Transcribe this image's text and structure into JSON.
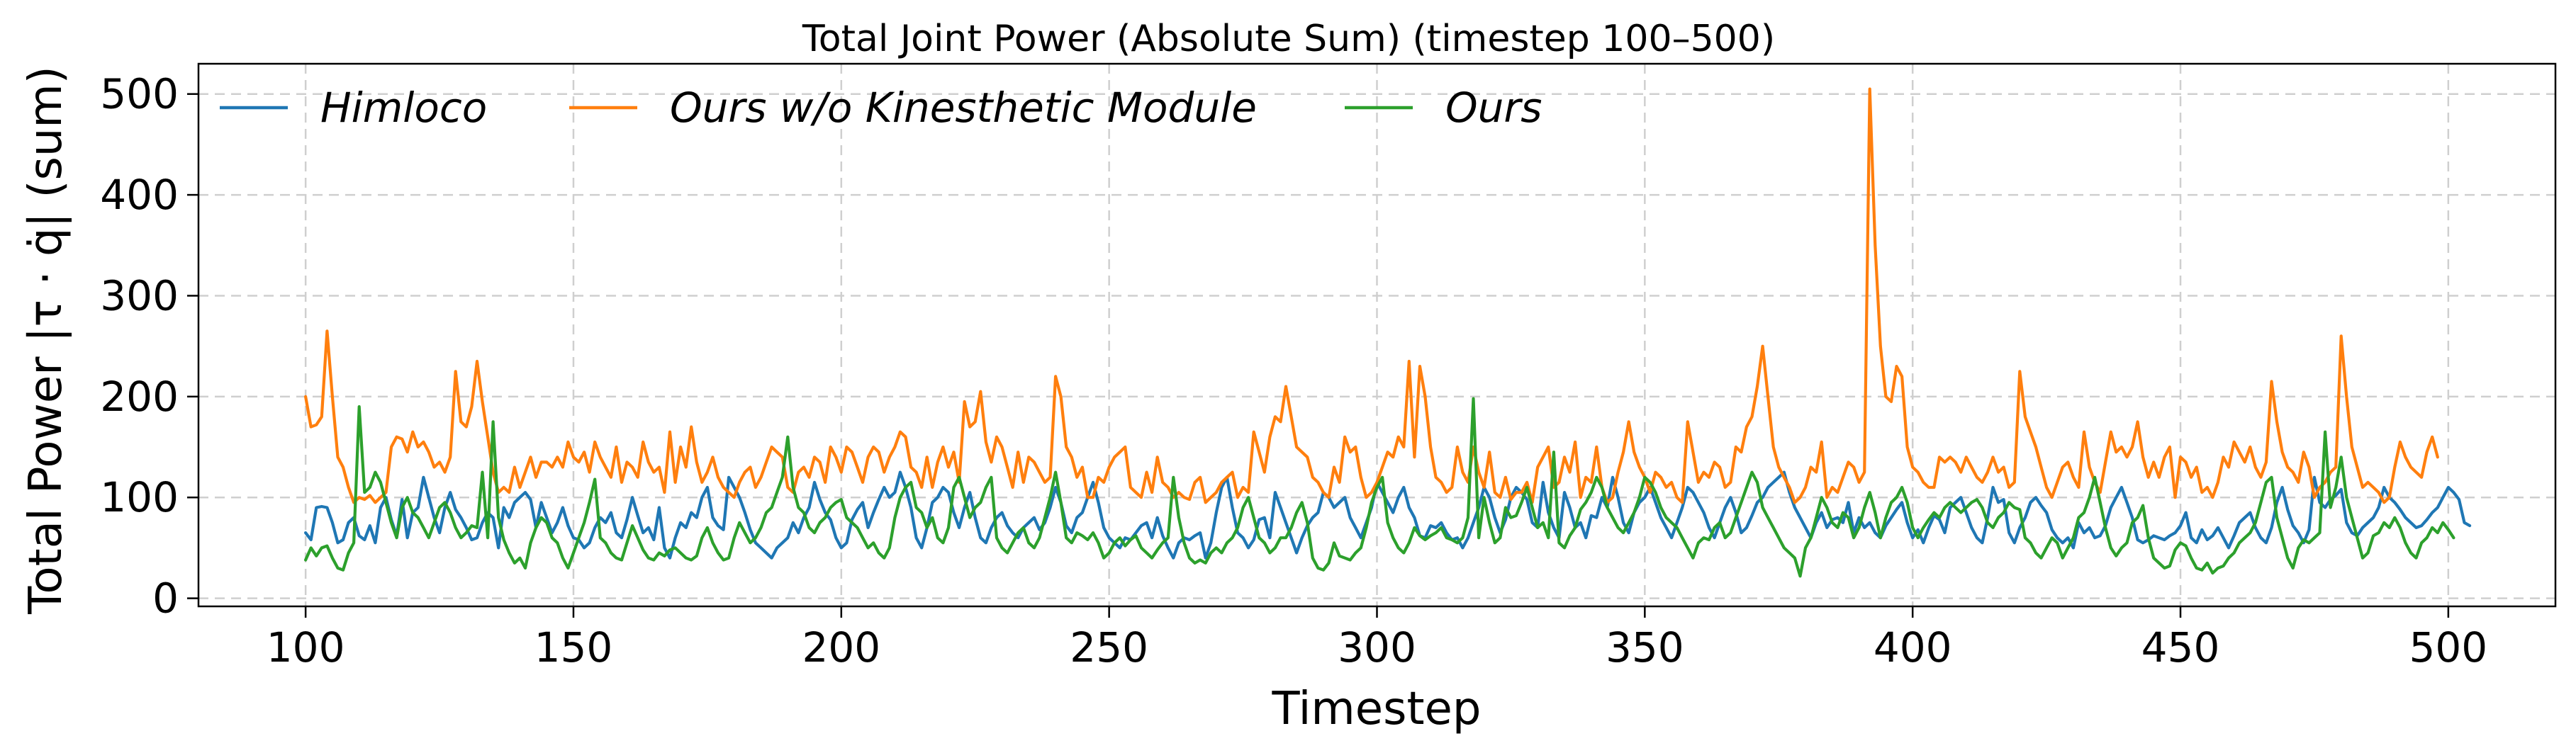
{
  "chart_data": {
    "type": "line",
    "title": "Total Joint Power (Absolute Sum)  (timestep 100–500)",
    "xlabel": "Timestep",
    "ylabel": "Total Power |τ · q̇| (sum)",
    "xlim": [
      80,
      520
    ],
    "ylim": [
      -8,
      530
    ],
    "xticks": [
      100,
      150,
      200,
      250,
      300,
      350,
      400,
      450,
      500
    ],
    "yticks": [
      0,
      100,
      200,
      300,
      400,
      500
    ],
    "grid": true,
    "legend_position": "top-left",
    "x": {
      "start": 100,
      "end": 500,
      "step": 1
    },
    "series": [
      {
        "name": "Himloco",
        "color": "#1f77b4",
        "values": [
          65,
          58,
          90,
          91,
          90,
          75,
          55,
          58,
          75,
          80,
          62,
          58,
          72,
          55,
          90,
          100,
          78,
          62,
          98,
          60,
          85,
          90,
          120,
          100,
          80,
          65,
          90,
          105,
          88,
          80,
          70,
          58,
          60,
          75,
          85,
          80,
          50,
          90,
          80,
          95,
          100,
          105,
          98,
          70,
          95,
          80,
          65,
          75,
          90,
          72,
          60,
          58,
          50,
          55,
          70,
          80,
          75,
          85,
          65,
          60,
          78,
          100,
          82,
          65,
          70,
          58,
          90,
          50,
          40,
          60,
          75,
          70,
          85,
          80,
          100,
          110,
          80,
          72,
          68,
          120,
          110,
          100,
          85,
          68,
          55,
          50,
          45,
          40,
          50,
          55,
          60,
          75,
          65,
          80,
          90,
          115,
          98,
          85,
          78,
          60,
          50,
          55,
          78,
          88,
          95,
          70,
          85,
          98,
          110,
          100,
          105,
          125,
          110,
          90,
          60,
          50,
          70,
          95,
          100,
          110,
          105,
          85,
          70,
          90,
          105,
          80,
          60,
          55,
          70,
          80,
          85,
          72,
          65,
          60,
          70,
          75,
          80,
          68,
          75,
          90,
          110,
          95,
          72,
          65,
          80,
          85,
          100,
          115,
          95,
          70,
          60,
          55,
          50,
          60,
          58,
          65,
          72,
          75,
          60,
          80,
          62,
          50,
          40,
          55,
          60,
          58,
          62,
          65,
          40,
          55,
          85,
          110,
          120,
          90,
          65,
          60,
          50,
          58,
          78,
          80,
          60,
          105,
          90,
          75,
          60,
          45,
          60,
          72,
          80,
          85,
          105,
          100,
          90,
          95,
          100,
          80,
          70,
          60,
          75,
          90,
          115,
          105,
          95,
          85,
          100,
          110,
          90,
          80,
          62,
          60,
          72,
          70,
          75,
          65,
          58,
          60,
          50,
          60,
          75,
          90,
          110,
          100,
          80,
          65,
          78,
          100,
          110,
          105,
          98,
          75,
          70,
          115,
          85,
          70,
          60,
          105,
          90,
          70,
          75,
          60,
          82,
          80,
          100,
          90,
          120,
          100,
          75,
          65,
          85,
          95,
          100,
          110,
          95,
          80,
          70,
          60,
          75,
          90,
          110,
          105,
          95,
          85,
          70,
          60,
          75,
          90,
          100,
          85,
          65,
          70,
          82,
          95,
          100,
          110,
          115,
          120,
          125,
          105,
          90,
          80,
          70,
          60,
          75,
          85,
          70,
          78,
          80,
          75,
          95,
          65,
          80,
          70,
          75,
          65,
          60,
          72,
          80,
          88,
          95,
          75,
          60,
          68,
          55,
          70,
          82,
          78,
          65,
          90,
          95,
          100,
          85,
          70,
          60,
          55,
          80,
          110,
          95,
          98,
          65,
          55,
          70,
          80,
          95,
          100,
          92,
          85,
          68,
          60,
          55,
          60,
          50,
          75,
          65,
          70,
          60,
          62,
          72,
          90,
          100,
          110,
          95,
          80,
          58,
          55,
          58,
          62,
          60,
          58,
          62,
          65,
          72,
          85,
          60,
          55,
          68,
          58,
          62,
          70,
          60,
          50,
          62,
          75,
          80,
          85,
          70,
          60,
          55,
          70,
          95,
          110,
          88,
          72,
          65,
          55,
          68,
          120,
          95,
          90,
          98,
          102,
          108,
          75,
          65,
          62,
          70,
          75,
          80,
          90,
          110,
          100,
          95,
          88,
          80,
          75,
          70,
          72,
          78,
          85,
          90,
          100,
          110,
          105,
          98,
          75,
          72
        ]
      },
      {
        "name": "Ours w/o Kinesthetic Module",
        "color": "#ff7f0e",
        "values": [
          200,
          170,
          172,
          180,
          265,
          200,
          140,
          130,
          110,
          95,
          100,
          98,
          102,
          95,
          100,
          105,
          150,
          160,
          158,
          145,
          165,
          150,
          155,
          145,
          130,
          135,
          125,
          140,
          225,
          175,
          170,
          190,
          235,
          195,
          160,
          125,
          105,
          110,
          105,
          130,
          110,
          125,
          140,
          120,
          135,
          135,
          130,
          140,
          130,
          155,
          140,
          135,
          145,
          125,
          155,
          140,
          130,
          120,
          150,
          115,
          135,
          130,
          120,
          155,
          135,
          125,
          130,
          105,
          165,
          115,
          150,
          130,
          170,
          135,
          115,
          125,
          140,
          120,
          110,
          105,
          100,
          115,
          125,
          130,
          110,
          120,
          135,
          150,
          145,
          140,
          110,
          105,
          125,
          130,
          120,
          140,
          135,
          115,
          150,
          140,
          125,
          150,
          145,
          130,
          115,
          140,
          150,
          145,
          125,
          140,
          150,
          165,
          160,
          130,
          125,
          110,
          140,
          110,
          135,
          150,
          130,
          145,
          115,
          195,
          170,
          175,
          205,
          155,
          135,
          160,
          150,
          130,
          110,
          145,
          115,
          140,
          135,
          125,
          115,
          120,
          220,
          200,
          150,
          140,
          120,
          130,
          100,
          100,
          120,
          115,
          130,
          140,
          145,
          150,
          110,
          105,
          100,
          125,
          105,
          140,
          115,
          110,
          100,
          105,
          100,
          98,
          115,
          120,
          95,
          100,
          105,
          115,
          120,
          125,
          100,
          110,
          105,
          165,
          145,
          125,
          160,
          180,
          175,
          210,
          180,
          150,
          145,
          140,
          120,
          115,
          105,
          100,
          130,
          115,
          160,
          145,
          150,
          120,
          100,
          105,
          115,
          130,
          145,
          140,
          160,
          150,
          235,
          140,
          230,
          200,
          150,
          120,
          115,
          105,
          110,
          150,
          125,
          115,
          150,
          125,
          110,
          145,
          105,
          100,
          120,
          98,
          105,
          105,
          115,
          95,
          130,
          140,
          150,
          110,
          115,
          140,
          125,
          155,
          100,
          120,
          115,
          150,
          110,
          95,
          100,
          125,
          145,
          175,
          145,
          130,
          120,
          105,
          125,
          120,
          110,
          115,
          100,
          95,
          175,
          145,
          115,
          125,
          120,
          135,
          130,
          110,
          115,
          150,
          145,
          170,
          180,
          210,
          250,
          200,
          150,
          130,
          120,
          110,
          95,
          100,
          110,
          130,
          125,
          155,
          100,
          110,
          105,
          120,
          135,
          130,
          115,
          125,
          505,
          350,
          250,
          200,
          195,
          230,
          220,
          150,
          130,
          125,
          115,
          110,
          110,
          140,
          135,
          140,
          135,
          125,
          140,
          130,
          120,
          115,
          125,
          140,
          125,
          130,
          110,
          115,
          225,
          180,
          165,
          150,
          130,
          110,
          100,
          115,
          130,
          135,
          120,
          110,
          165,
          130,
          115,
          105,
          135,
          165,
          145,
          150,
          140,
          150,
          175,
          140,
          120,
          135,
          120,
          140,
          150,
          100,
          140,
          135,
          120,
          130,
          105,
          110,
          100,
          115,
          140,
          130,
          155,
          145,
          135,
          150,
          130,
          120,
          135,
          215,
          175,
          145,
          130,
          125,
          115,
          145,
          130,
          100,
          110,
          115,
          125,
          130,
          260,
          200,
          150,
          130,
          110,
          115,
          110,
          105,
          95,
          100,
          130,
          155,
          140,
          130,
          125,
          120,
          145,
          160,
          140
        ]
      },
      {
        "name": "Ours",
        "color": "#2ca02c",
        "values": [
          38,
          50,
          42,
          50,
          52,
          40,
          30,
          28,
          45,
          55,
          190,
          105,
          110,
          125,
          115,
          95,
          75,
          60,
          90,
          100,
          85,
          80,
          70,
          60,
          75,
          90,
          95,
          85,
          70,
          60,
          65,
          72,
          70,
          125,
          60,
          175,
          80,
          58,
          45,
          35,
          40,
          30,
          55,
          70,
          80,
          75,
          60,
          55,
          40,
          30,
          45,
          60,
          75,
          95,
          118,
          60,
          55,
          45,
          40,
          38,
          55,
          72,
          60,
          48,
          40,
          38,
          45,
          42,
          48,
          50,
          45,
          40,
          38,
          42,
          60,
          70,
          55,
          45,
          38,
          40,
          60,
          75,
          65,
          55,
          60,
          70,
          85,
          90,
          105,
          120,
          160,
          110,
          90,
          85,
          70,
          65,
          75,
          80,
          90,
          95,
          98,
          80,
          75,
          70,
          60,
          50,
          55,
          45,
          40,
          50,
          80,
          100,
          110,
          115,
          90,
          85,
          70,
          80,
          60,
          55,
          70,
          110,
          120,
          100,
          80,
          90,
          95,
          110,
          120,
          60,
          50,
          45,
          55,
          65,
          70,
          55,
          50,
          60,
          80,
          100,
          125,
          95,
          60,
          55,
          65,
          62,
          58,
          65,
          55,
          40,
          45,
          55,
          60,
          52,
          58,
          62,
          50,
          45,
          40,
          48,
          55,
          60,
          120,
          80,
          55,
          40,
          35,
          38,
          35,
          45,
          50,
          45,
          55,
          60,
          70,
          90,
          100,
          80,
          60,
          55,
          45,
          50,
          60,
          60,
          70,
          85,
          95,
          75,
          40,
          30,
          28,
          35,
          55,
          42,
          40,
          38,
          45,
          50,
          70,
          95,
          110,
          120,
          75,
          60,
          50,
          45,
          55,
          70,
          62,
          58,
          62,
          65,
          70,
          60,
          58,
          55,
          60,
          80,
          198,
          60,
          100,
          75,
          55,
          60,
          90,
          80,
          82,
          95,
          110,
          90,
          70,
          75,
          60,
          145,
          55,
          50,
          62,
          70,
          88,
          95,
          105,
          120,
          110,
          90,
          80,
          70,
          65,
          75,
          85,
          100,
          120,
          115,
          105,
          90,
          80,
          75,
          70,
          60,
          50,
          40,
          55,
          60,
          58,
          70,
          75,
          60,
          65,
          80,
          95,
          110,
          125,
          115,
          90,
          80,
          70,
          60,
          50,
          45,
          40,
          22,
          50,
          60,
          80,
          100,
          90,
          75,
          70,
          85,
          80,
          60,
          70,
          90,
          105,
          85,
          60,
          80,
          95,
          100,
          110,
          95,
          70,
          60,
          70,
          78,
          85,
          80,
          90,
          95,
          90,
          85,
          90,
          95,
          98,
          90,
          75,
          70,
          80,
          85,
          95,
          90,
          88,
          60,
          55,
          45,
          40,
          50,
          60,
          55,
          40,
          50,
          60,
          80,
          85,
          100,
          120,
          95,
          70,
          50,
          42,
          50,
          55,
          75,
          80,
          92,
          60,
          40,
          35,
          30,
          32,
          48,
          55,
          52,
          40,
          30,
          28,
          35,
          25,
          30,
          32,
          40,
          45,
          55,
          60,
          65,
          75,
          95,
          115,
          120,
          80,
          60,
          40,
          30,
          50,
          58,
          55,
          60,
          65,
          165,
          90,
          110,
          140,
          100,
          80,
          60,
          40,
          45,
          62,
          65,
          75,
          70,
          80,
          70,
          55,
          45,
          40,
          55,
          60,
          70,
          65,
          75,
          68,
          60
        ]
      }
    ]
  }
}
